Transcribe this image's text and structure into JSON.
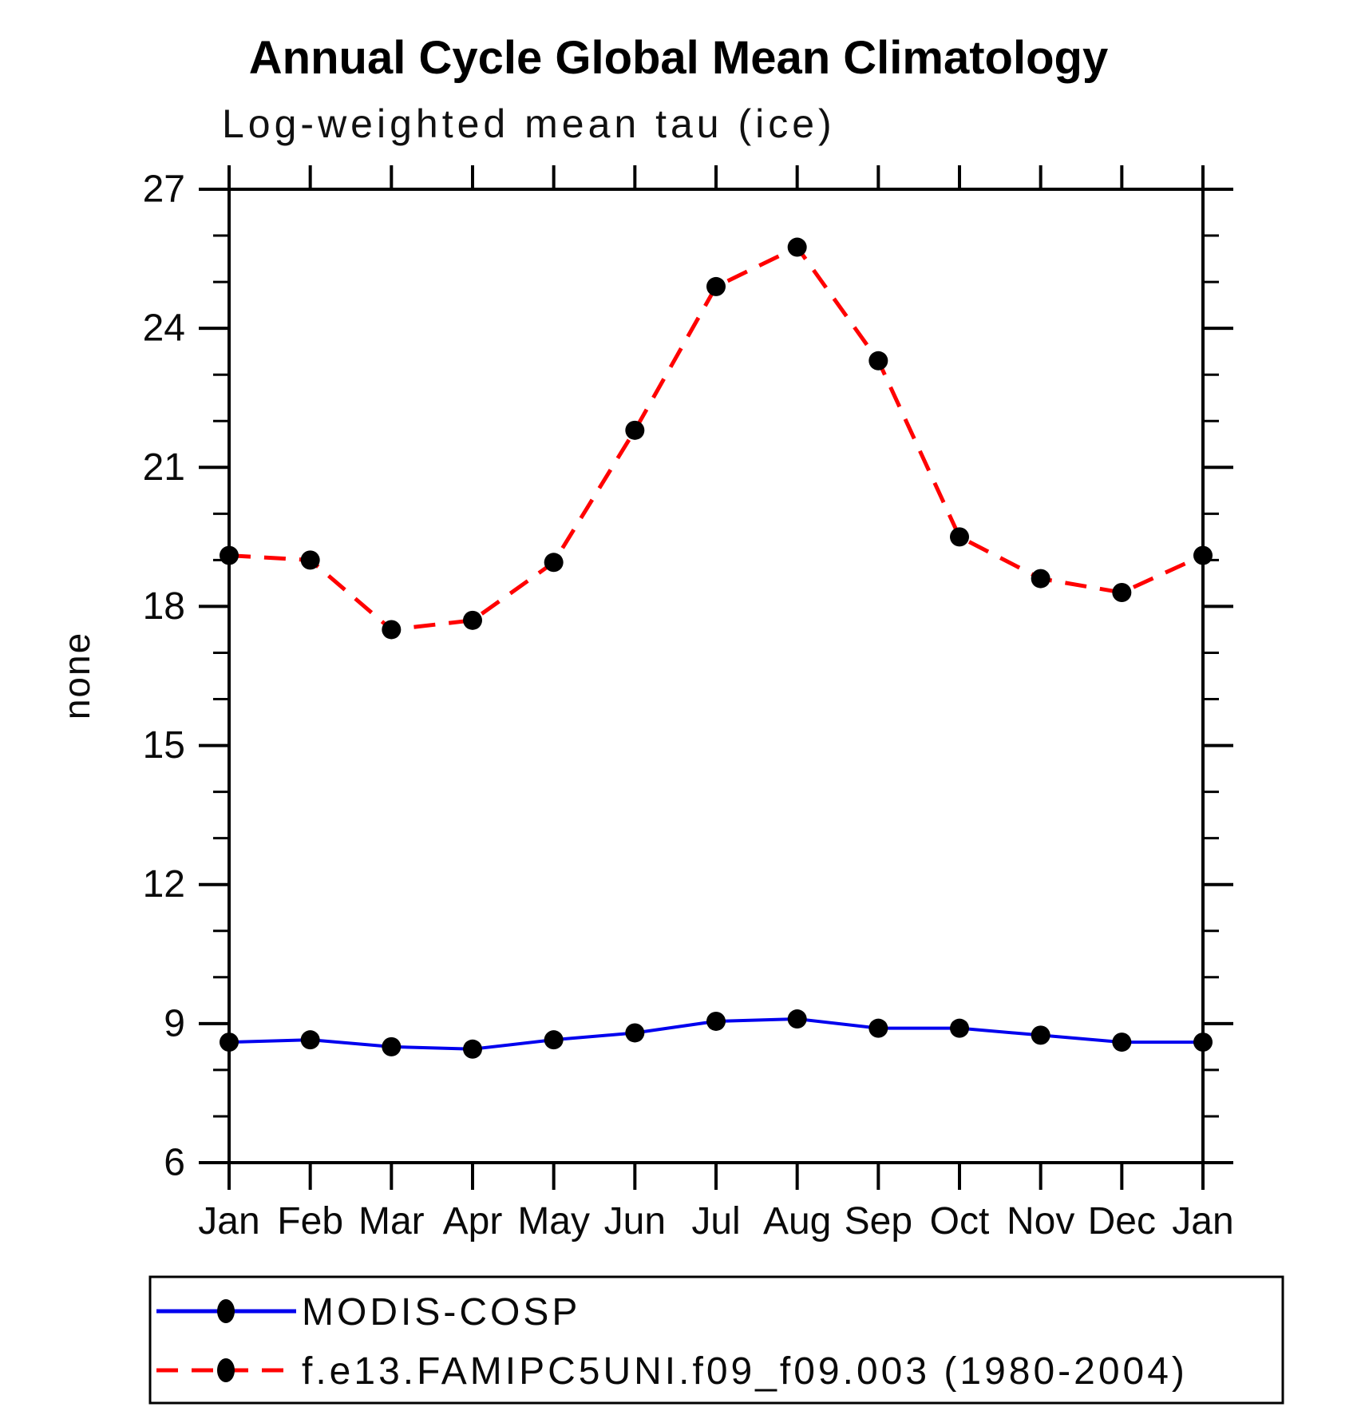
{
  "chart_data": {
    "type": "line",
    "title": "Annual Cycle Global Mean Climatology",
    "subtitle": "Log-weighted mean tau (ice)",
    "ylabel": "none",
    "xlabel": "",
    "categories": [
      "Jan",
      "Feb",
      "Mar",
      "Apr",
      "May",
      "Jun",
      "Jul",
      "Aug",
      "Sep",
      "Oct",
      "Nov",
      "Dec",
      "Jan"
    ],
    "ylim": [
      6,
      27
    ],
    "y_major_ticks": [
      6,
      9,
      12,
      15,
      18,
      21,
      24,
      27
    ],
    "y_minor_step": 1,
    "grid": "off",
    "legend_position": "bottom",
    "marker_color": "#000000",
    "series": [
      {
        "name": "MODIS-COSP",
        "color": "#0000ee",
        "style": "solid",
        "values": [
          8.6,
          8.65,
          8.5,
          8.45,
          8.65,
          8.8,
          9.05,
          9.1,
          8.9,
          8.9,
          8.75,
          8.6,
          8.6
        ]
      },
      {
        "name": "f.e13.FAMIPC5UNI.f09_f09.003 (1980-2004)",
        "color": "#ff0000",
        "style": "dashed",
        "values": [
          19.1,
          19.0,
          17.5,
          17.7,
          18.95,
          21.8,
          24.9,
          25.75,
          23.3,
          19.5,
          18.6,
          18.3,
          19.1
        ]
      }
    ]
  }
}
